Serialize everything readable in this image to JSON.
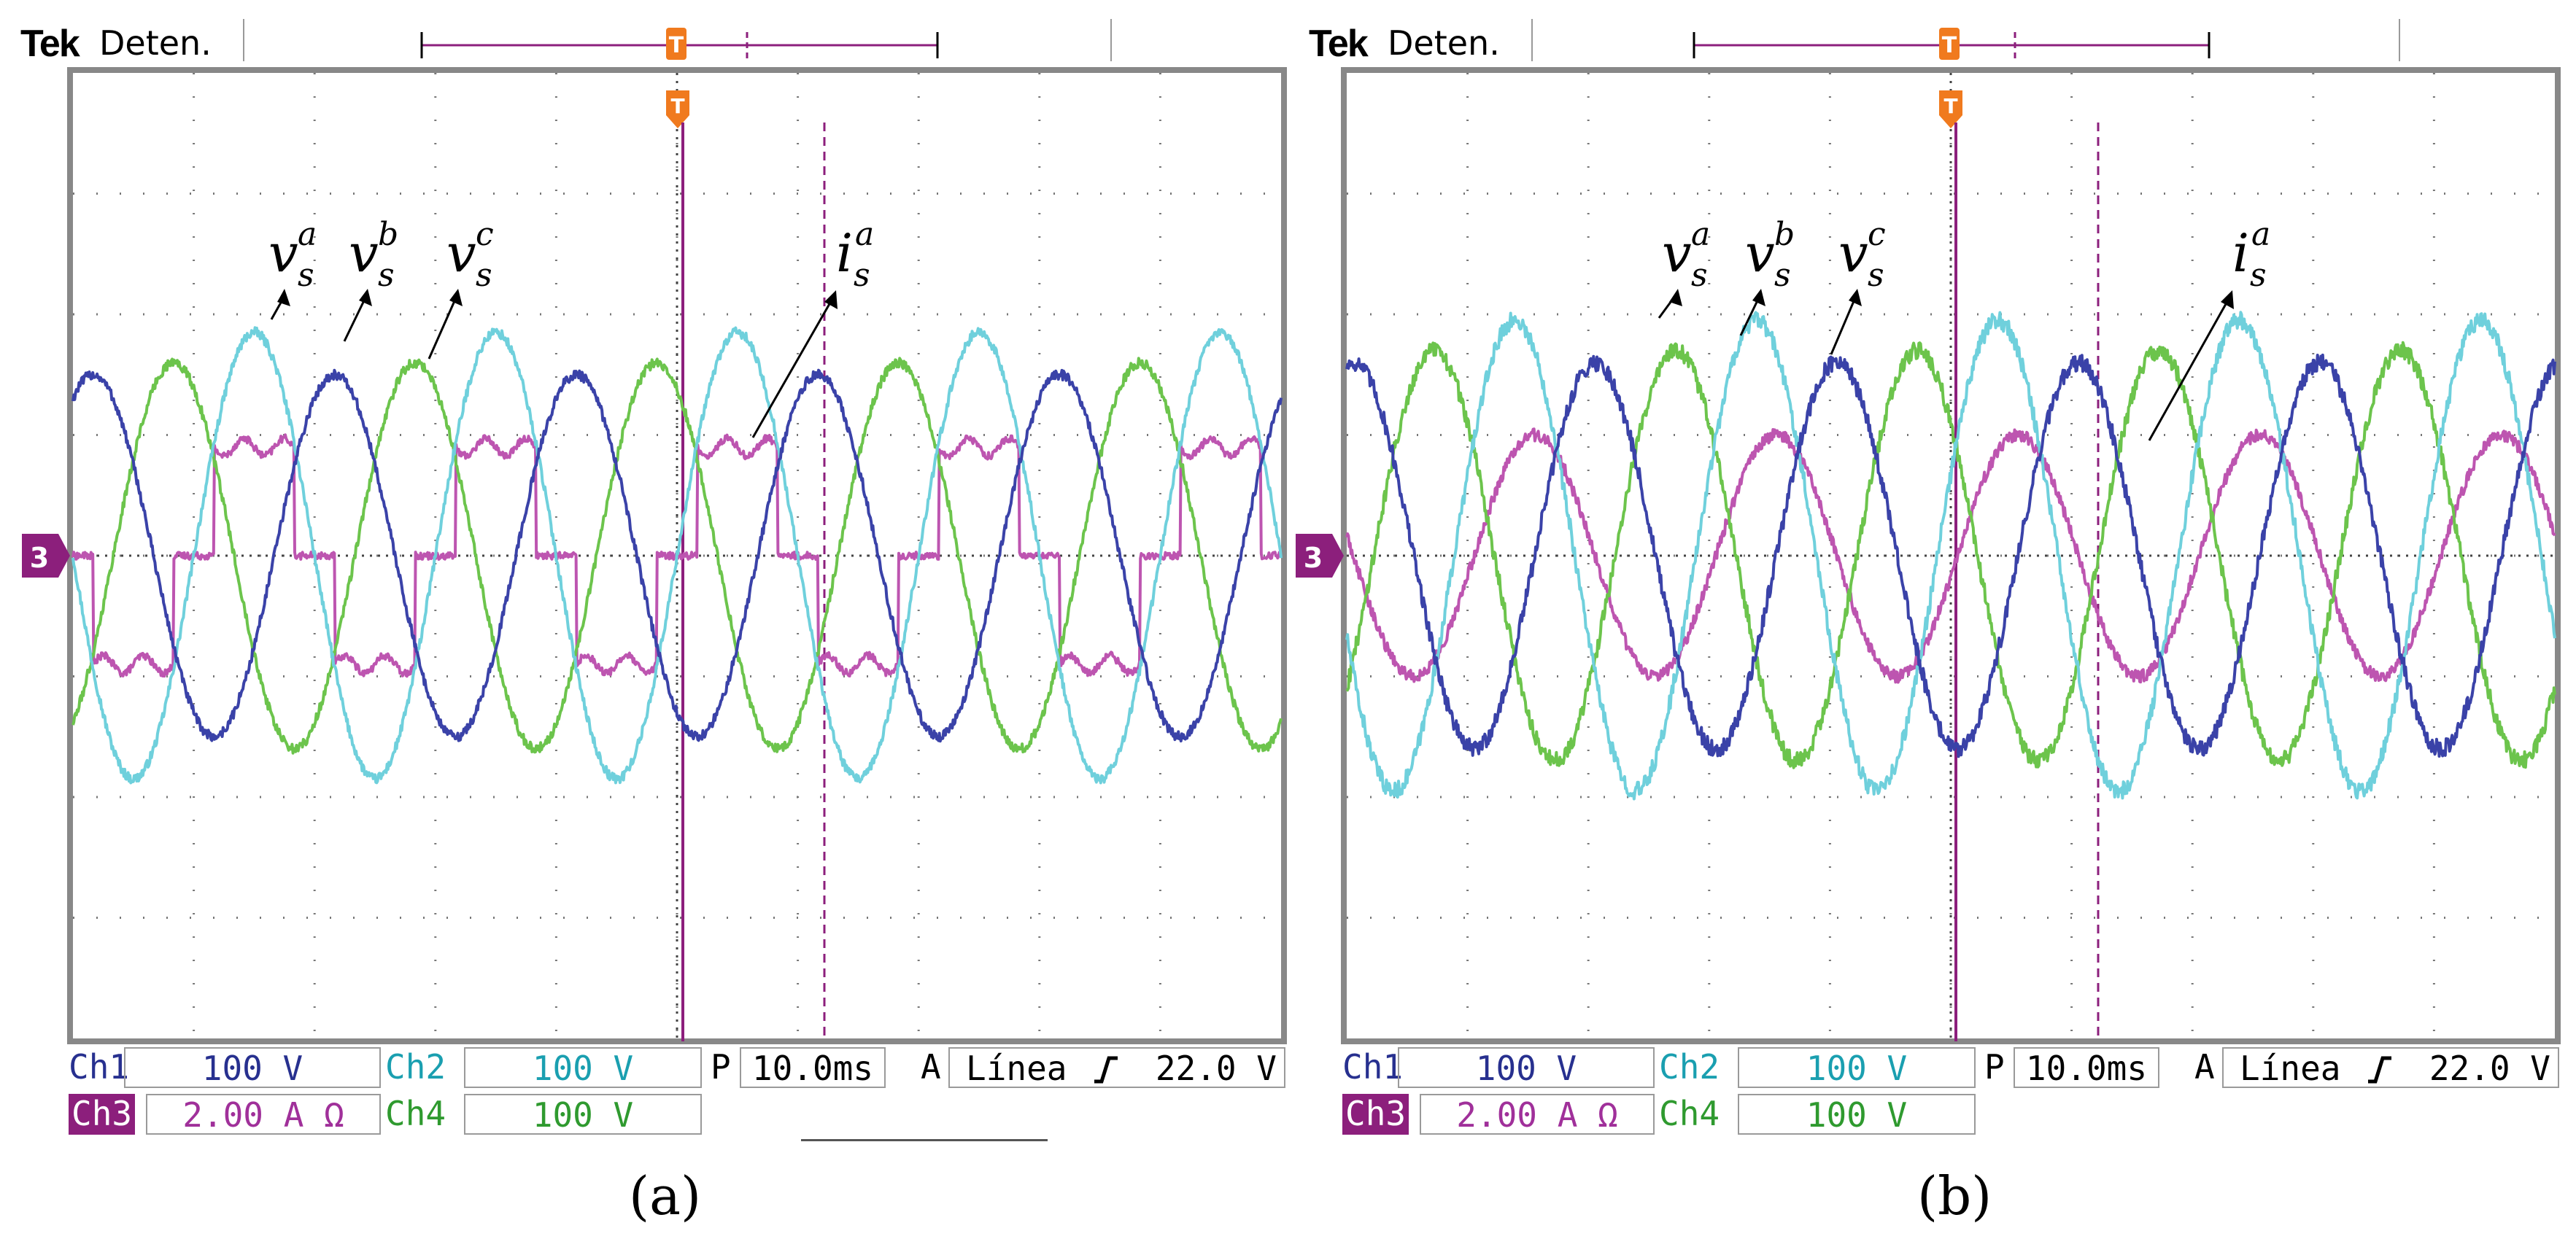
{
  "panels": [
    {
      "id": "a",
      "label": "(a)",
      "scope": {
        "brand": "Tek",
        "state": "Deten.",
        "trigger_marker": "T",
        "ref_marker_ch3": "3"
      },
      "readouts": {
        "ch1_label": "Ch1",
        "ch1_scale": "100 V",
        "ch2_label": "Ch2",
        "ch2_scale": "100 V",
        "ch3_label": "Ch3",
        "ch3_scale": "2.00 A Ω",
        "ch4_label": "Ch4",
        "ch4_scale": "100 V",
        "time_label": "P",
        "time_scale": "10.0ms",
        "trigger_label": "A",
        "trigger_source": "Línea",
        "trigger_slope_icon": "rising-edge",
        "trigger_level": "22.0 V"
      },
      "annotations": {
        "va": "v",
        "va_sup": "a",
        "vb": "v",
        "vb_sup": "b",
        "vc": "v",
        "vc_sup": "c",
        "ia": "i",
        "ia_sup": "a",
        "sub": "s"
      },
      "chart_data": {
        "type": "line",
        "x_unit": "ms",
        "x_range": [
          -50,
          50
        ],
        "xlabel": "",
        "ylabel": "",
        "divisions": {
          "horizontal": 10,
          "vertical": 8
        },
        "grid": true,
        "series": [
          {
            "name": "v_s^a",
            "channel": "Ch2",
            "color": "#6fd0dc",
            "wave": "sine",
            "period_ms": 20,
            "amplitude_div": 1.85,
            "phase_deg": 0,
            "noise_div": 0.04
          },
          {
            "name": "v_s^b",
            "channel": "Ch1",
            "color": "#3a42a8",
            "wave": "sine",
            "period_ms": 20,
            "amplitude_div": 1.5,
            "phase_deg": -120,
            "noise_div": 0.04
          },
          {
            "name": "v_s^c",
            "channel": "Ch4",
            "color": "#6cc44c",
            "wave": "sine",
            "period_ms": 20,
            "amplitude_div": 1.6,
            "phase_deg": 120,
            "noise_div": 0.04
          },
          {
            "name": "i_s^a",
            "channel": "Ch3",
            "color": "#bd55b0",
            "wave": "six-step",
            "period_ms": 20,
            "amplitude_div": 0.9,
            "phase_deg": 0,
            "noise_div": 0.03
          }
        ]
      }
    },
    {
      "id": "b",
      "label": "(b)",
      "scope": {
        "brand": "Tek",
        "state": "Deten.",
        "trigger_marker": "T",
        "ref_marker_ch3": "3"
      },
      "readouts": {
        "ch1_label": "Ch1",
        "ch1_scale": "100 V",
        "ch2_label": "Ch2",
        "ch2_scale": "100 V",
        "ch3_label": "Ch3",
        "ch3_scale": "2.00 A Ω",
        "ch4_label": "Ch4",
        "ch4_scale": "100 V",
        "time_label": "P",
        "time_scale": "10.0ms",
        "trigger_label": "A",
        "trigger_source": "Línea",
        "trigger_slope_icon": "rising-edge",
        "trigger_level": "22.0 V"
      },
      "annotations": {
        "va": "v",
        "va_sup": "a",
        "vb": "v",
        "vb_sup": "b",
        "vc": "v",
        "vc_sup": "c",
        "ia": "i",
        "ia_sup": "a",
        "sub": "s"
      },
      "chart_data": {
        "type": "line",
        "x_unit": "ms",
        "x_range": [
          -50,
          50
        ],
        "xlabel": "",
        "ylabel": "",
        "divisions": {
          "horizontal": 10,
          "vertical": 8
        },
        "grid": true,
        "series": [
          {
            "name": "v_s^a",
            "channel": "Ch2",
            "color": "#6fd0dc",
            "wave": "sine",
            "period_ms": 20,
            "amplitude_div": 1.95,
            "phase_deg": 20,
            "noise_div": 0.07
          },
          {
            "name": "v_s^b",
            "channel": "Ch1",
            "color": "#3a42a8",
            "wave": "sine",
            "period_ms": 20,
            "amplitude_div": 1.6,
            "phase_deg": -100,
            "noise_div": 0.07
          },
          {
            "name": "v_s^c",
            "channel": "Ch4",
            "color": "#6cc44c",
            "wave": "sine",
            "period_ms": 20,
            "amplitude_div": 1.7,
            "phase_deg": 140,
            "noise_div": 0.07
          },
          {
            "name": "i_s^a",
            "channel": "Ch3",
            "color": "#bd55b0",
            "wave": "sine",
            "period_ms": 20,
            "amplitude_div": 1.0,
            "phase_deg": -10,
            "noise_div": 0.05
          }
        ]
      }
    }
  ]
}
